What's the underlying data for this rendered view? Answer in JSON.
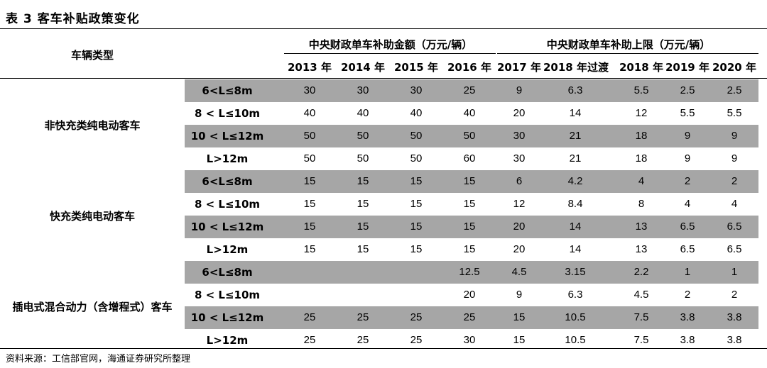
{
  "title": "表 3 客车补贴政策变化",
  "header": {
    "vehicle_type": "车辆类型",
    "group1": "中央财政单车补助金额（万元/辆）",
    "group2": "中央财政单车补助上限（万元/辆）",
    "years": [
      "2013 年",
      "2014 年",
      "2015 年",
      "2016 年",
      "2017 年",
      "2018 年过渡",
      "2018 年",
      "2019 年",
      "2020 年"
    ]
  },
  "categories": [
    {
      "name": "非快充类纯电动客车",
      "rows": [
        {
          "label": "6<L≤8m",
          "values": [
            "30",
            "30",
            "30",
            "25",
            "9",
            "6.3",
            "5.5",
            "2.5",
            "2.5"
          ]
        },
        {
          "label": "8 < L≤10m",
          "values": [
            "40",
            "40",
            "40",
            "40",
            "20",
            "14",
            "12",
            "5.5",
            "5.5"
          ]
        },
        {
          "label": "10 < L≤12m",
          "values": [
            "50",
            "50",
            "50",
            "50",
            "30",
            "21",
            "18",
            "9",
            "9"
          ]
        },
        {
          "label": "L>12m",
          "values": [
            "50",
            "50",
            "50",
            "60",
            "30",
            "21",
            "18",
            "9",
            "9"
          ]
        }
      ]
    },
    {
      "name": "快充类纯电动客车",
      "rows": [
        {
          "label": "6<L≤8m",
          "values": [
            "15",
            "15",
            "15",
            "15",
            "6",
            "4.2",
            "4",
            "2",
            "2"
          ]
        },
        {
          "label": "8 < L≤10m",
          "values": [
            "15",
            "15",
            "15",
            "15",
            "12",
            "8.4",
            "8",
            "4",
            "4"
          ]
        },
        {
          "label": "10 < L≤12m",
          "values": [
            "15",
            "15",
            "15",
            "15",
            "20",
            "14",
            "13",
            "6.5",
            "6.5"
          ]
        },
        {
          "label": "L>12m",
          "values": [
            "15",
            "15",
            "15",
            "15",
            "20",
            "14",
            "13",
            "6.5",
            "6.5"
          ]
        }
      ]
    },
    {
      "name": "插电式混合动力（含增程式）客车",
      "rows": [
        {
          "label": "6<L≤8m",
          "values": [
            "",
            "",
            "",
            "12.5",
            "4.5",
            "3.15",
            "2.2",
            "1",
            "1"
          ]
        },
        {
          "label": "8 < L≤10m",
          "values": [
            "",
            "",
            "",
            "20",
            "9",
            "6.3",
            "4.5",
            "2",
            "2"
          ]
        },
        {
          "label": "10 < L≤12m",
          "values": [
            "25",
            "25",
            "25",
            "25",
            "15",
            "10.5",
            "7.5",
            "3.8",
            "3.8"
          ]
        },
        {
          "label": "L>12m",
          "values": [
            "25",
            "25",
            "25",
            "30",
            "15",
            "10.5",
            "7.5",
            "3.8",
            "3.8"
          ]
        }
      ]
    }
  ],
  "source": "资料来源：工信部官网，海通证券研究所整理",
  "colors": {
    "shade": "#a6a6a6"
  }
}
